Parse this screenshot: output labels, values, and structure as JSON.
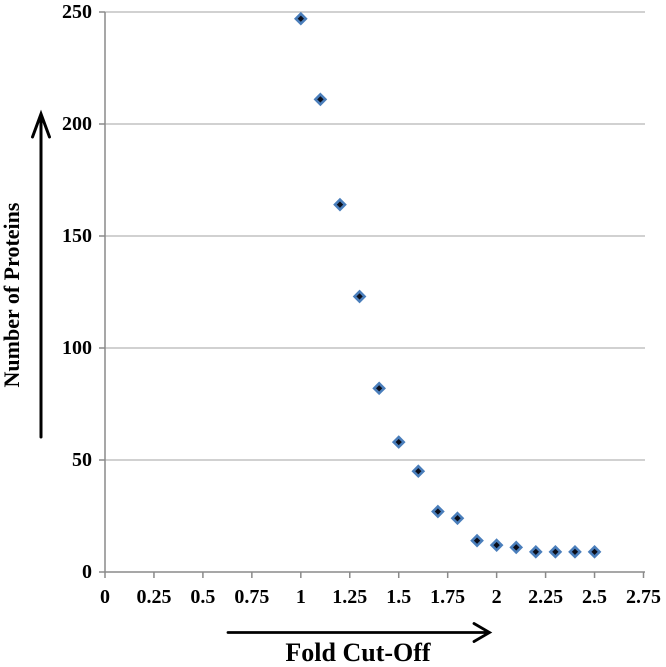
{
  "chart_data": {
    "type": "scatter",
    "title": "",
    "xlabel": "Fold Cut-Off",
    "ylabel": "Number of Proteins",
    "x": [
      1.0,
      1.1,
      1.2,
      1.3,
      1.4,
      1.5,
      1.6,
      1.7,
      1.8,
      1.9,
      2.0,
      2.1,
      2.2,
      2.3,
      2.4,
      2.5
    ],
    "y": [
      247,
      211,
      164,
      123,
      82,
      58,
      45,
      27,
      24,
      14,
      12,
      11,
      9,
      9,
      9,
      9
    ],
    "xlim": [
      0,
      2.75
    ],
    "ylim": [
      0,
      250
    ],
    "x_tick_labels": [
      "0",
      "0.25",
      "0.5",
      "0.75",
      "1",
      "1.25",
      "1.5",
      "1.75",
      "2",
      "2.25",
      "2.5",
      "2.75"
    ],
    "y_tick_labels": [
      "0",
      "50",
      "100",
      "150",
      "200",
      "250"
    ],
    "grid": "horizontal-only",
    "legend": "none",
    "marker": "diamond",
    "colors": {
      "marker_fill": "#0b0e1a",
      "marker_stroke": "#4a7ebb",
      "gridline": "#c2c2c2",
      "axis": "#8a8a8a",
      "text": "#000000",
      "arrow": "#000000",
      "background": "#ffffff"
    }
  }
}
